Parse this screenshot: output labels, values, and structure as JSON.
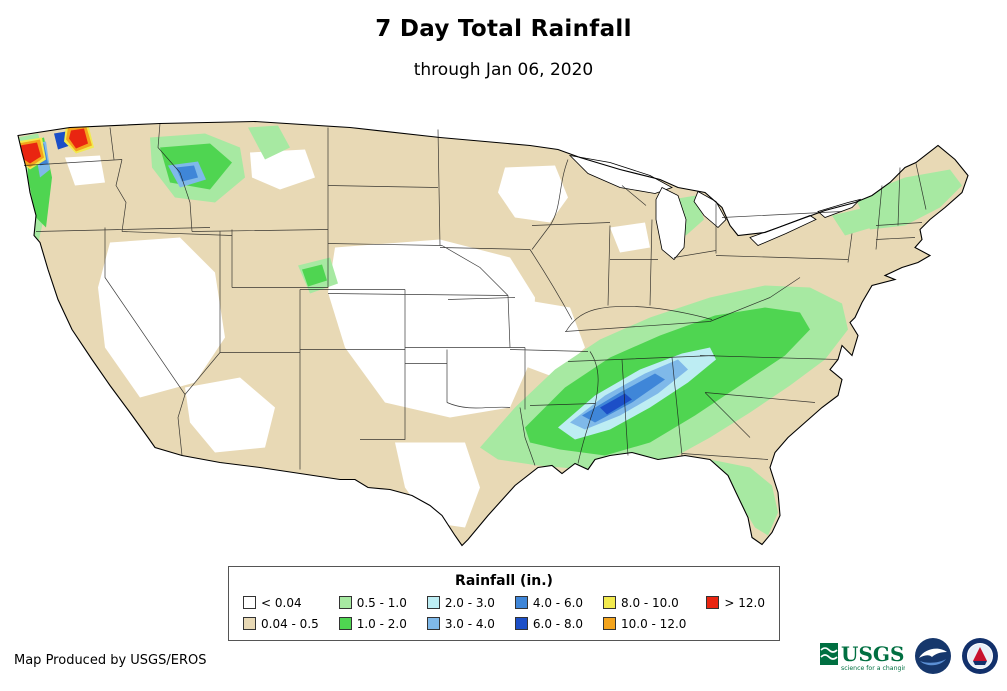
{
  "title": "7 Day Total Rainfall",
  "subtitle": "through Jan 06, 2020",
  "attribution": "Map Produced by USGS/EROS",
  "legend": {
    "title": "Rainfall (in.)",
    "items": [
      {
        "label": "< 0.04",
        "color": "#ffffff"
      },
      {
        "label": "0.04 - 0.5",
        "color": "#e8d9b5"
      },
      {
        "label": "0.5 - 1.0",
        "color": "#a7e9a2"
      },
      {
        "label": "1.0 - 2.0",
        "color": "#4fd551"
      },
      {
        "label": "2.0 - 3.0",
        "color": "#bdedf3"
      },
      {
        "label": "3.0 - 4.0",
        "color": "#7fb9e9"
      },
      {
        "label": "4.0 - 6.0",
        "color": "#3f86d8"
      },
      {
        "label": "6.0 - 8.0",
        "color": "#1c4fc7"
      },
      {
        "label": "8.0 - 10.0",
        "color": "#f2ea4e"
      },
      {
        "label": "10.0 - 12.0",
        "color": "#f4a41c"
      },
      {
        "label": "> 12.0",
        "color": "#e92511"
      }
    ]
  },
  "map": {
    "border_color": "#000000",
    "state_line_color": "#1a1a1a"
  },
  "footer": {
    "usgs_text": "USGS",
    "usgs_tagline": "science for a changing world",
    "logo_icons": [
      "usgs-logo",
      "noaa-logo",
      "nws-logo"
    ]
  }
}
